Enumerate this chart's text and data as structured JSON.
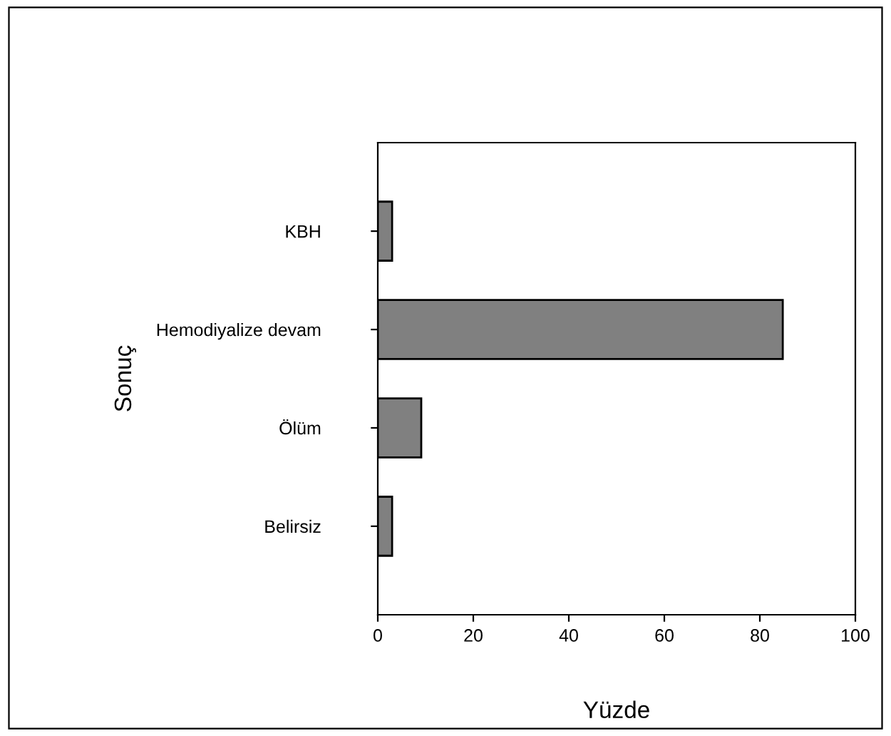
{
  "chart_data": {
    "type": "bar",
    "orientation": "horizontal",
    "xlabel": "Yüzde",
    "ylabel": "Sonuç",
    "categories": [
      "KBH",
      "Hemodiyalize devam",
      "Ölüm",
      "Belirsiz"
    ],
    "values": [
      3,
      84.8,
      9.1,
      3
    ],
    "color": "#808080",
    "xlim": [
      0,
      100
    ],
    "xticks": [
      0,
      20,
      40,
      60,
      80,
      100
    ],
    "grid": false,
    "legend": false
  }
}
